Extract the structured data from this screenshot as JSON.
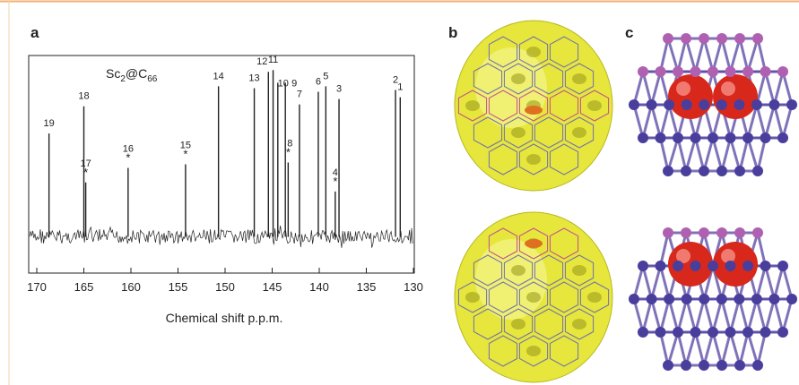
{
  "panel_labels": [
    "a",
    "b",
    "c"
  ],
  "chart_data": {
    "type": "spectrum",
    "title_parts": [
      "Sc",
      "2",
      "@C",
      "66"
    ],
    "xlabel": "Chemical shift p.p.m.",
    "xlim": [
      170,
      130
    ],
    "xticks": [
      170,
      165,
      160,
      155,
      150,
      145,
      140,
      135,
      130
    ],
    "ylim": [
      -20,
      100
    ],
    "color": "#222222",
    "peaks": [
      {
        "label": "19",
        "x": 168.7,
        "y": 57
      },
      {
        "label": "18",
        "x": 165.0,
        "y": 72
      },
      {
        "label": "17",
        "x": 164.8,
        "y": 30,
        "mark": "*"
      },
      {
        "label": "16",
        "x": 160.3,
        "y": 38,
        "mark": "*"
      },
      {
        "label": "15",
        "x": 154.2,
        "y": 40,
        "mark": "*"
      },
      {
        "label": "14",
        "x": 150.7,
        "y": 83
      },
      {
        "label": "13",
        "x": 146.9,
        "y": 82
      },
      {
        "label": "12",
        "x": 145.4,
        "y": 91
      },
      {
        "label": "11",
        "x": 144.9,
        "y": 92
      },
      {
        "label": "10",
        "x": 144.4,
        "y": 85
      },
      {
        "label": "9",
        "x": 143.6,
        "y": 85
      },
      {
        "label": "8",
        "x": 143.3,
        "y": 41,
        "mark": "*"
      },
      {
        "label": "7",
        "x": 142.1,
        "y": 73
      },
      {
        "label": "6",
        "x": 140.1,
        "y": 80
      },
      {
        "label": "5",
        "x": 139.3,
        "y": 83
      },
      {
        "label": "4",
        "x": 138.3,
        "y": 25,
        "mark": "*"
      },
      {
        "label": "3",
        "x": 137.9,
        "y": 76
      },
      {
        "label": "2",
        "x": 131.9,
        "y": 81
      },
      {
        "label": "1",
        "x": 131.4,
        "y": 77
      }
    ]
  }
}
